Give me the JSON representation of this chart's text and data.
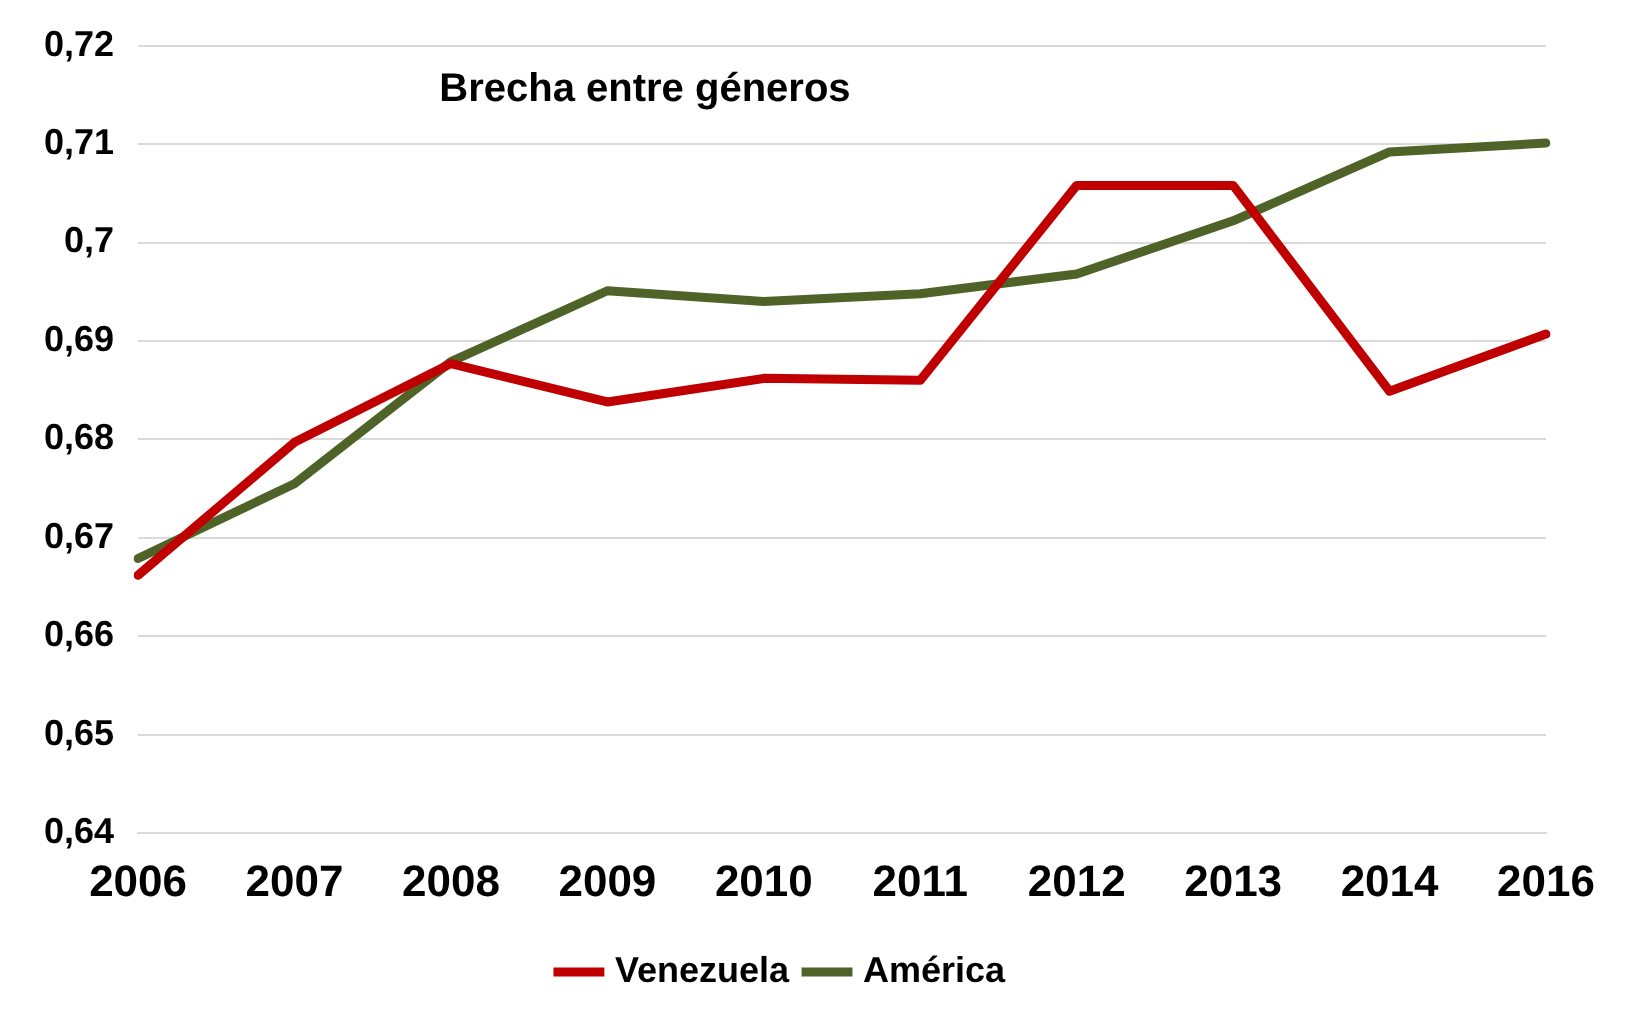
{
  "chart_data": {
    "type": "line",
    "title": "Brecha entre géneros",
    "categories": [
      "2006",
      "2007",
      "2008",
      "2009",
      "2010",
      "2011",
      "2012",
      "2013",
      "2014",
      "2016"
    ],
    "series": [
      {
        "name": "Venezuela",
        "color": "#c00000",
        "values": [
          0.6662,
          0.6797,
          0.6877,
          0.6838,
          0.6862,
          0.686,
          0.7058,
          0.7058,
          0.6849,
          0.6907
        ]
      },
      {
        "name": "América",
        "color": "#4f6228",
        "values": [
          0.6679,
          0.6755,
          0.6879,
          0.6951,
          0.694,
          0.6948,
          0.6968,
          0.7022,
          0.7092,
          0.7101
        ]
      }
    ],
    "ylim": [
      0.64,
      0.72
    ],
    "yticks": [
      {
        "value": 0.64,
        "label": "0,64"
      },
      {
        "value": 0.65,
        "label": "0,65"
      },
      {
        "value": 0.66,
        "label": "0,66"
      },
      {
        "value": 0.67,
        "label": "0,67"
      },
      {
        "value": 0.68,
        "label": "0,68"
      },
      {
        "value": 0.69,
        "label": "0,69"
      },
      {
        "value": 0.7,
        "label": "0,7"
      },
      {
        "value": 0.71,
        "label": "0,71"
      },
      {
        "value": 0.72,
        "label": "0,72"
      }
    ],
    "grid": "y",
    "legend": "bottom",
    "marker": "none",
    "line_style": "solid"
  }
}
